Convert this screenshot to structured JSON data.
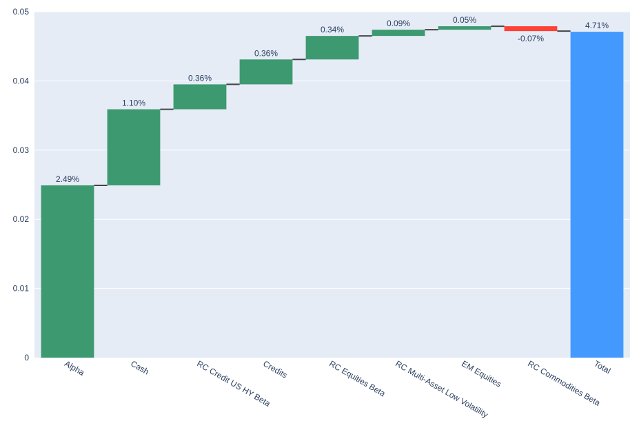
{
  "chart_data": {
    "type": "waterfall",
    "categories": [
      "Alpha",
      "Cash",
      "RC Credit US HY Beta",
      "Credits",
      "RC Equities Beta",
      "RC Multi-Asset Low Volatility",
      "EM Equities",
      "RC Commodities Beta",
      "Total"
    ],
    "measures": [
      "relative",
      "relative",
      "relative",
      "relative",
      "relative",
      "relative",
      "relative",
      "relative",
      "total"
    ],
    "values": [
      0.0249,
      0.011,
      0.0036,
      0.0036,
      0.0034,
      0.0009,
      0.0005,
      -0.0007,
      0.0471
    ],
    "labels": [
      "2.49%",
      "1.10%",
      "0.36%",
      "0.36%",
      "0.34%",
      "0.09%",
      "0.05%",
      "-0.07%",
      "4.71%"
    ],
    "yticks": [
      "0",
      "0.01",
      "0.02",
      "0.03",
      "0.04",
      "0.05"
    ],
    "ylim": [
      0,
      0.05
    ],
    "grid": true,
    "colors": {
      "increasing": "#3d9970",
      "decreasing": "#ff4136",
      "total": "#4499ff",
      "plot_bg": "#e5ecf6",
      "grid": "#ffffff",
      "connector": "#444444",
      "text": "#2a3f5f"
    }
  }
}
